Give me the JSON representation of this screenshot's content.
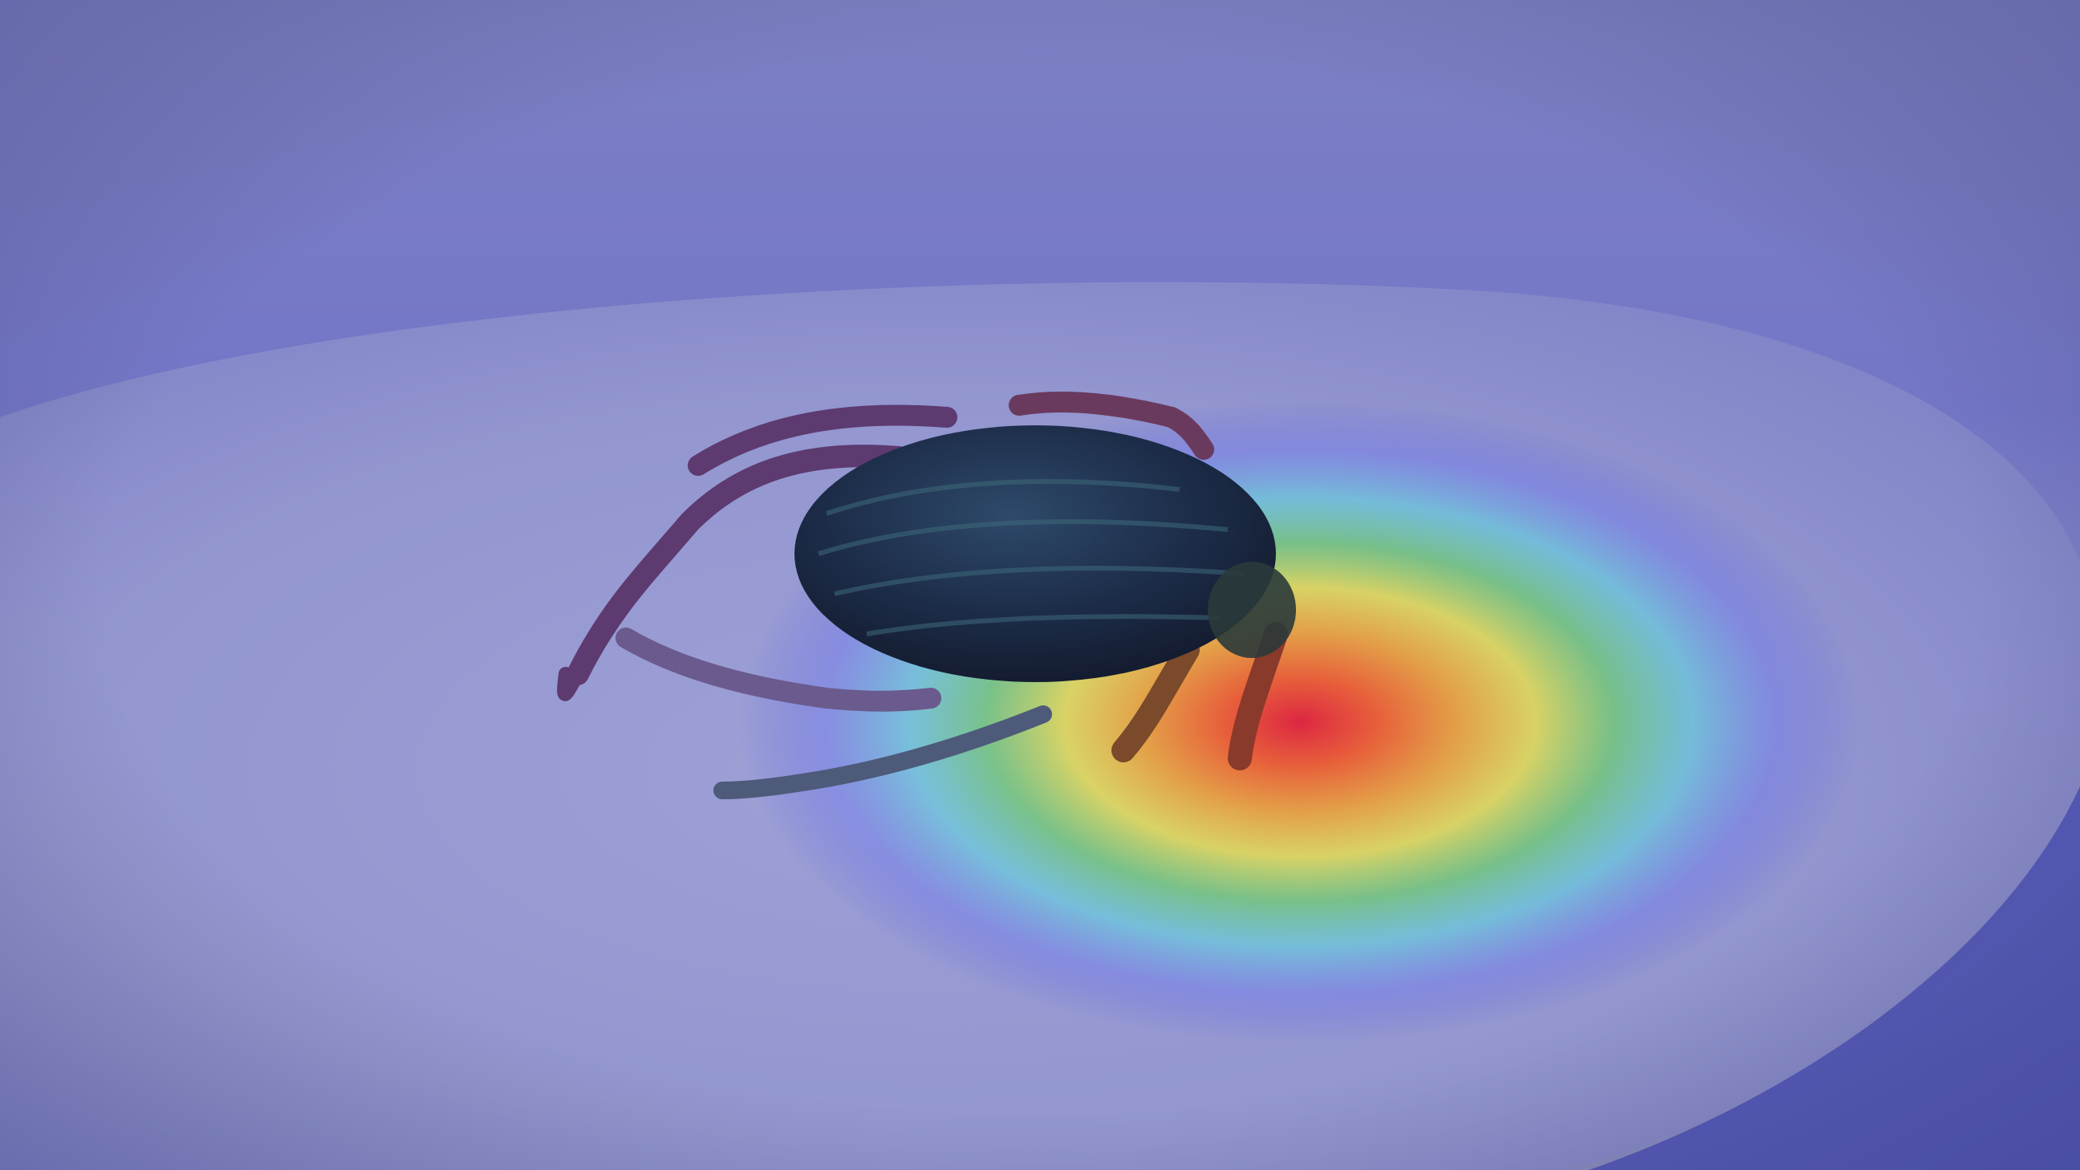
{
  "image": {
    "subject": "tick",
    "colors": {
      "overlay_cool": "#5a5ee0",
      "overlay_lavender": "#8c8ed0",
      "surface_gray": "#a9abc9",
      "dish_rim_shadow": "#4f53b8",
      "tick_body": "#1f2c4a",
      "tick_legs": "#6a3a5e",
      "heat_red": "#e0203a",
      "heat_orange": "#f07a2a",
      "heat_yellow": "#e8e04a",
      "heat_green": "#6ad06a",
      "heat_cyan": "#5fd4e0",
      "heat_blue": "#6f78f0"
    }
  },
  "heatmap": {
    "peak_label": "",
    "colormap": [
      "#e0203a",
      "#f07a2a",
      "#e8e04a",
      "#6ad06a",
      "#5fd4e0",
      "#6f78f0"
    ]
  }
}
